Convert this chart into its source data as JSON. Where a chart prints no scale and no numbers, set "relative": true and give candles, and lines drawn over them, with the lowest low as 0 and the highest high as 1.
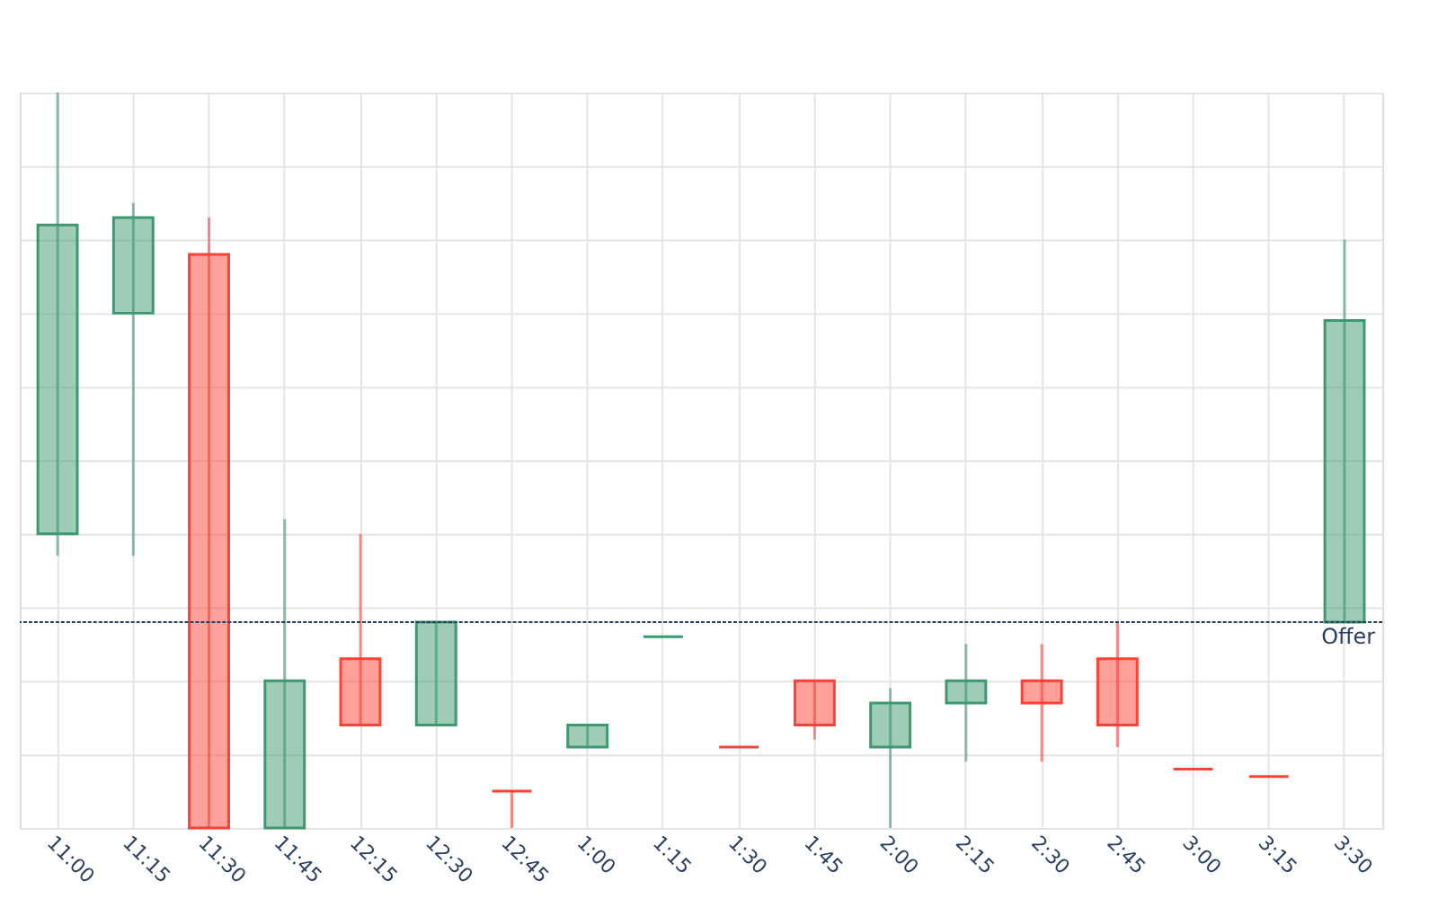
{
  "chart_data": {
    "type": "candlestick",
    "relative": true,
    "grid": true,
    "tick_labels": "x",
    "legend": false,
    "categories": [
      "11:00",
      "11:15",
      "11:30",
      "11:45",
      "12:15",
      "12:30",
      "12:45",
      "1:00",
      "1:15",
      "1:30",
      "1:45",
      "2:00",
      "2:15",
      "2:30",
      "2:45",
      "3:00",
      "3:15",
      "3:30"
    ],
    "ohlc": [
      [
        0.4,
        1.0,
        0.37,
        0.82
      ],
      [
        0.7,
        0.85,
        0.37,
        0.83
      ],
      [
        0.78,
        0.83,
        0.0,
        0.0
      ],
      [
        0.0,
        0.42,
        0.0,
        0.2
      ],
      [
        0.23,
        0.4,
        0.14,
        0.14
      ],
      [
        0.14,
        0.28,
        0.14,
        0.28
      ],
      [
        0.05,
        0.05,
        0.0,
        0.05
      ],
      [
        0.11,
        0.14,
        0.11,
        0.14
      ],
      [
        0.26,
        0.26,
        0.26,
        0.26
      ],
      [
        0.11,
        0.11,
        0.11,
        0.11
      ],
      [
        0.2,
        0.2,
        0.12,
        0.14
      ],
      [
        0.11,
        0.19,
        0.0,
        0.17
      ],
      [
        0.17,
        0.25,
        0.09,
        0.2
      ],
      [
        0.2,
        0.25,
        0.09,
        0.17
      ],
      [
        0.23,
        0.28,
        0.11,
        0.14
      ],
      [
        0.08,
        0.08,
        0.08,
        0.08
      ],
      [
        0.07,
        0.07,
        0.07,
        0.07
      ],
      [
        0.28,
        0.8,
        0.28,
        0.69
      ]
    ],
    "colors": [
      "#3d9970",
      "#3d9970",
      "#ff4136",
      "#3d9970",
      "#ff4136",
      "#3d9970",
      "#ff4136",
      "#3d9970",
      "#3d9970",
      "#ff4136",
      "#ff4136",
      "#3d9970",
      "#3d9970",
      "#ff4136",
      "#ff4136",
      "#ff4136",
      "#ff4136",
      "#3d9970"
    ],
    "ref_lines": [
      {
        "axis": "y",
        "value": 0.28,
        "label": "Offer",
        "color": "#2a3f5f",
        "line_style": "dotted"
      }
    ]
  }
}
